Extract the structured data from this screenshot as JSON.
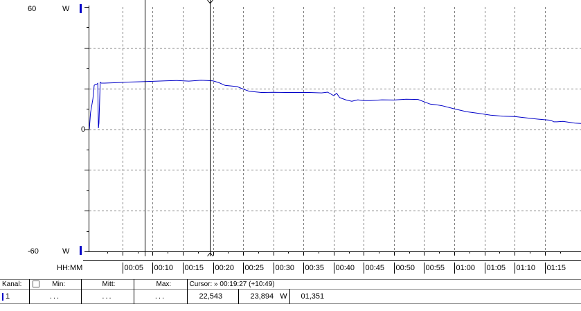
{
  "y_axis": {
    "top_label": "60",
    "bottom_label": "-60",
    "zero_label": "0",
    "unit_top": "W",
    "unit_bottom": "W"
  },
  "x_axis": {
    "format_label": "HH:MM",
    "ticks": [
      "00:05",
      "00:10",
      "00:15",
      "00:20",
      "00:25",
      "00:30",
      "00:35",
      "00:40",
      "00:45",
      "00:50",
      "00:55",
      "01:00",
      "01:05",
      "01:10",
      "01:15"
    ]
  },
  "chart_data": {
    "type": "line",
    "xlabel": "HH:MM",
    "ylabel": "W",
    "ylim": [
      -60,
      60
    ],
    "x_unit": "minutes",
    "xlim": [
      -0.5,
      81
    ],
    "grid": true,
    "line_color": "#0000c8",
    "cursors_minutes": [
      8.66,
      19.45
    ],
    "series": [
      {
        "x": [
          -0.5,
          -0.3,
          0.1,
          0.3,
          0.5,
          0.7,
          0.9,
          1.0,
          1.1,
          1.3,
          1.5,
          2,
          4,
          6,
          8,
          10,
          12,
          14,
          16,
          18,
          19,
          20,
          21,
          22,
          24,
          25,
          26,
          28,
          30,
          32,
          34,
          36,
          38,
          39,
          40,
          40.5,
          41,
          42,
          43,
          44,
          45,
          46,
          48,
          50,
          52,
          54,
          56,
          57,
          58,
          60,
          62,
          64,
          66,
          68,
          70,
          72,
          74,
          76,
          76.5,
          77,
          78,
          80,
          81
        ],
        "y": [
          0,
          8,
          15,
          21.5,
          22,
          22,
          22.5,
          0.5,
          3,
          23,
          22.6,
          22.6,
          22.8,
          23.1,
          23.3,
          23.5,
          23.7,
          23.9,
          23.6,
          24,
          23.9,
          23.7,
          22.8,
          21.5,
          20.9,
          19.7,
          18.6,
          18,
          18.1,
          18,
          18,
          18,
          17.8,
          18.2,
          16.5,
          17.6,
          15.5,
          14.4,
          13.7,
          14.4,
          14,
          14,
          14.4,
          14.3,
          14.7,
          14.6,
          12.3,
          12,
          11.5,
          10,
          8.6,
          7.8,
          6.9,
          6.4,
          6.2,
          5.5,
          4.9,
          4.4,
          3.6,
          3.6,
          3.8,
          3,
          2.8
        ]
      }
    ]
  },
  "table": {
    "headers": {
      "kanal": "Kanal:",
      "min": "Min:",
      "mitt": "Mitt:",
      "max": "Max:",
      "cursor": "Cursor: » 00:19:27 (+10:49)"
    },
    "row": {
      "channel": "1",
      "min": "...",
      "mitt": "...",
      "max": "...",
      "cursor_value1": "22,543",
      "cursor_value2": "23,894",
      "cursor_unit": "W",
      "cursor_delta": "01,351"
    }
  },
  "colors": {
    "series": "#0000c8",
    "grid": "#808080",
    "accent_blue": "#0000c8"
  }
}
